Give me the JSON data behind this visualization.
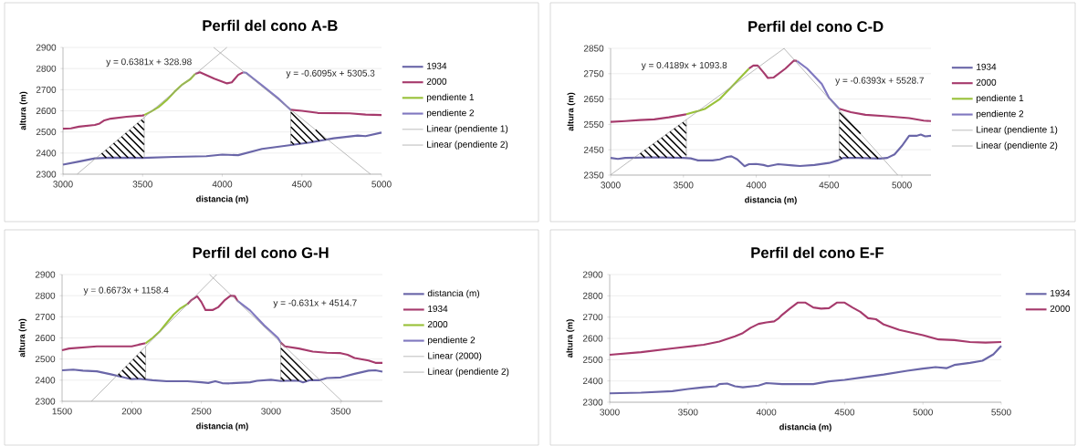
{
  "chart_data": [
    {
      "type": "line",
      "title": "Perfil del cono A-B",
      "xlabel": "distancia (m)",
      "ylabel": "altura (m)",
      "xlim": [
        3000,
        5000
      ],
      "ylim": [
        2300,
        2900
      ],
      "xticks": [
        3000,
        3500,
        4000,
        4500,
        5000
      ],
      "yticks": [
        2300,
        2400,
        2500,
        2600,
        2700,
        2800,
        2900
      ],
      "grid": "y",
      "legend": "right",
      "annotations": [
        "y = 0.6381x + 328.98",
        "y = -0.6095x + 5305.3"
      ],
      "series": [
        {
          "name": "1934",
          "color": "#6a66a8",
          "x": [
            3000,
            3100,
            3200,
            3300,
            3500,
            3700,
            3900,
            4000,
            4100,
            4150,
            4250,
            4400,
            4550,
            4700,
            4850,
            4900,
            5000
          ],
          "values": [
            2345,
            2360,
            2375,
            2378,
            2377,
            2382,
            2385,
            2393,
            2390,
            2400,
            2420,
            2435,
            2450,
            2470,
            2483,
            2480,
            2497
          ]
        },
        {
          "name": "2000",
          "color": "#a63a6c",
          "x": [
            3000,
            3050,
            3100,
            3200,
            3230,
            3260,
            3300,
            3400,
            3500,
            3510,
            3600,
            3830,
            3860,
            3950,
            4030,
            4060,
            4100,
            4130,
            4300,
            4430,
            4500,
            4600,
            4800,
            4900,
            5000
          ],
          "values": [
            2515,
            2517,
            2525,
            2533,
            2540,
            2555,
            2563,
            2572,
            2578,
            2580,
            null,
            2775,
            2782,
            2752,
            2730,
            2735,
            2770,
            2782,
            null,
            2605,
            2600,
            2590,
            2588,
            2582,
            2580
          ]
        },
        {
          "name": "pendiente 1",
          "color": "#99c13a",
          "x": [
            3510,
            3550,
            3600,
            3650,
            3700,
            3750,
            3800,
            3830
          ],
          "values": [
            2580,
            2595,
            2618,
            2650,
            2690,
            2725,
            2750,
            2775
          ]
        },
        {
          "name": "pendiente 2",
          "color": "#8078c0",
          "x": [
            4130,
            4150,
            4200,
            4250,
            4300,
            4350,
            4400,
            4430
          ],
          "values": [
            2782,
            2780,
            2750,
            2720,
            2690,
            2660,
            2625,
            2605
          ]
        },
        {
          "name": "Linear (pendiente 1)",
          "color": "#999999",
          "x": [
            3090,
            4029
          ],
          "values": [
            2301,
            2900
          ]
        },
        {
          "name": "Linear (pendiente 2)",
          "color": "#999999",
          "x": [
            3946,
            4931
          ],
          "values": [
            2900,
            2300
          ]
        }
      ]
    },
    {
      "type": "line",
      "title": "Perfil del cono C-D",
      "xlabel": "distancia (m)",
      "ylabel": "altura (m)",
      "xlim": [
        3000,
        5200
      ],
      "ylim": [
        2350,
        2850
      ],
      "xticks": [
        3000,
        3500,
        4000,
        4500,
        5000
      ],
      "yticks": [
        2350,
        2450,
        2550,
        2650,
        2750,
        2850
      ],
      "grid": "y",
      "legend": "right",
      "annotations": [
        "y = 0.4189x + 1093.8",
        "y = -0.6393x + 5528.7"
      ],
      "series": [
        {
          "name": "1934",
          "color": "#6a66a8",
          "x": [
            3000,
            3050,
            3100,
            3300,
            3500,
            3550,
            3600,
            3700,
            3750,
            3800,
            3830,
            3870,
            3920,
            3950,
            4000,
            4050,
            4080,
            4150,
            4250,
            4300,
            4400,
            4500,
            4560,
            4600,
            4700,
            4850,
            4900,
            4950,
            5000,
            5050,
            5100,
            5130,
            5160,
            5200
          ],
          "values": [
            2418,
            2414,
            2418,
            2420,
            2418,
            2416,
            2408,
            2408,
            2412,
            2422,
            2424,
            2412,
            2385,
            2393,
            2394,
            2390,
            2385,
            2393,
            2388,
            2386,
            2390,
            2398,
            2408,
            2418,
            2418,
            2415,
            2418,
            2432,
            2465,
            2505,
            2505,
            2510,
            2503,
            2505
          ]
        },
        {
          "name": "2000",
          "color": "#a63a6c",
          "x": [
            3000,
            3100,
            3200,
            3300,
            3400,
            3500,
            3520,
            3700,
            3950,
            3980,
            4010,
            4050,
            4080,
            4120,
            4200,
            4260,
            4280,
            4400,
            4570,
            4650,
            4750,
            4900,
            5050,
            5150,
            5200
          ],
          "values": [
            2560,
            2563,
            2567,
            2570,
            2578,
            2588,
            2590,
            null,
            2770,
            2782,
            2782,
            2755,
            2733,
            2735,
            2770,
            2802,
            2800,
            null,
            2612,
            2598,
            2588,
            2582,
            2575,
            2565,
            2563
          ]
        },
        {
          "name": "pendiente 1",
          "color": "#99c13a",
          "x": [
            3520,
            3600,
            3650,
            3750,
            3850,
            3950
          ],
          "values": [
            2590,
            2603,
            2612,
            2650,
            2710,
            2770
          ]
        },
        {
          "name": "pendiente 2",
          "color": "#8078c0",
          "x": [
            4280,
            4350,
            4450,
            4500,
            4570
          ],
          "values": [
            2800,
            2770,
            2710,
            2655,
            2612
          ]
        },
        {
          "name": "Linear (pendiente 1)",
          "color": "#999999",
          "x": [
            3000,
            4192
          ],
          "values": [
            2351,
            2850
          ]
        },
        {
          "name": "Linear (pendiente 2)",
          "color": "#999999",
          "x": [
            4190,
            4972
          ],
          "values": [
            2850,
            2350
          ]
        }
      ]
    },
    {
      "type": "line",
      "title": "Perfil del cono G-H",
      "xlabel": "distancia (m)",
      "ylabel": "altura (m)",
      "xlim": [
        1500,
        3800
      ],
      "ylim": [
        2300,
        2900
      ],
      "xticks": [
        1500,
        2000,
        2500,
        3000,
        3500
      ],
      "yticks": [
        2300,
        2400,
        2500,
        2600,
        2700,
        2800,
        2900
      ],
      "grid": "y",
      "legend": "right",
      "annotations": [
        "y = 0.6673x + 1158.4",
        "y = -0.631x + 4514.7"
      ],
      "series": [
        {
          "name": "distancia (m)",
          "color": "#6a66a8",
          "x": [
            1500,
            1580,
            1650,
            1750,
            1850,
            1950,
            2000,
            2050,
            2150,
            2250,
            2400,
            2500,
            2550,
            2600,
            2650,
            2700,
            2850,
            2900,
            3000,
            3070,
            3150,
            3200,
            3230,
            3280,
            3350,
            3400,
            3500,
            3600,
            3700,
            3750,
            3800
          ],
          "values": [
            2447,
            2450,
            2445,
            2442,
            2428,
            2412,
            2405,
            2407,
            2400,
            2395,
            2395,
            2390,
            2387,
            2395,
            2386,
            2385,
            2390,
            2397,
            2402,
            2396,
            2398,
            2397,
            2390,
            2400,
            2400,
            2410,
            2413,
            2430,
            2445,
            2447,
            2440
          ]
        },
        {
          "name": "1934",
          "color": "#a63a6c",
          "x": [
            1500,
            1550,
            1650,
            1750,
            1900,
            2000,
            2050,
            2100,
            2250,
            2400,
            2430,
            2470,
            2500,
            2530,
            2580,
            2620,
            2670,
            2710,
            2740,
            2760,
            2900,
            3070,
            3100,
            3200,
            3300,
            3400,
            3500,
            3550,
            3600,
            3700,
            3750,
            3800
          ],
          "values": [
            2542,
            2550,
            2555,
            2560,
            2560,
            2560,
            2568,
            2575,
            null,
            2760,
            2780,
            2797,
            2770,
            2732,
            2732,
            2745,
            2780,
            2800,
            2798,
            2775,
            null,
            2578,
            2560,
            2550,
            2535,
            2530,
            2528,
            2520,
            2505,
            2493,
            2482,
            2482
          ]
        },
        {
          "name": "2000",
          "color": "#99c13a",
          "x": [
            2100,
            2150,
            2200,
            2250,
            2300,
            2350,
            2400
          ],
          "values": [
            2575,
            2600,
            2630,
            2670,
            2710,
            2740,
            2760
          ]
        },
        {
          "name": "pendiente 2",
          "color": "#8078c0",
          "x": [
            2760,
            2850,
            2900,
            2950,
            3000,
            3050,
            3070
          ],
          "values": [
            2775,
            2730,
            2695,
            2660,
            2630,
            2600,
            2578
          ]
        },
        {
          "name": "Linear (2000)",
          "color": "#999999",
          "x": [
            1711,
            2610
          ],
          "values": [
            2300,
            2900
          ]
        },
        {
          "name": "Linear (pendiente 2)",
          "color": "#999999",
          "x": [
            2559,
            3510
          ],
          "values": [
            2900,
            2300
          ]
        }
      ]
    },
    {
      "type": "line",
      "title": "Perfil del cono E-F",
      "xlabel": "distancia (m)",
      "ylabel": "altura (m)",
      "xlim": [
        3000,
        5500
      ],
      "ylim": [
        2300,
        2900
      ],
      "xticks": [
        3000,
        3500,
        4000,
        4500,
        5000,
        5500
      ],
      "yticks": [
        2300,
        2400,
        2500,
        2600,
        2700,
        2800,
        2900
      ],
      "grid": "y",
      "legend": "right",
      "series": [
        {
          "name": "1934",
          "color": "#6a66a8",
          "x": [
            3000,
            3200,
            3400,
            3500,
            3600,
            3680,
            3700,
            3750,
            3800,
            3850,
            3950,
            4000,
            4100,
            4200,
            4300,
            4400,
            4500,
            4600,
            4750,
            4900,
            5000,
            5080,
            5150,
            5200,
            5300,
            5380,
            5450,
            5500
          ],
          "values": [
            2342,
            2345,
            2352,
            2362,
            2370,
            2375,
            2385,
            2388,
            2375,
            2370,
            2378,
            2390,
            2385,
            2385,
            2385,
            2398,
            2405,
            2415,
            2430,
            2448,
            2458,
            2465,
            2460,
            2475,
            2485,
            2495,
            2525,
            2565
          ]
        },
        {
          "name": "2000",
          "color": "#a63a6c",
          "x": [
            3000,
            3200,
            3400,
            3600,
            3700,
            3800,
            3850,
            3900,
            3950,
            4000,
            4050,
            4080,
            4100,
            4150,
            4200,
            4250,
            4300,
            4350,
            4400,
            4450,
            4500,
            4550,
            4600,
            4650,
            4700,
            4750,
            4850,
            5000,
            5100,
            5200,
            5300,
            5400,
            5500
          ],
          "values": [
            2523,
            2535,
            2553,
            2570,
            2585,
            2610,
            2625,
            2650,
            2668,
            2675,
            2680,
            2695,
            2710,
            2740,
            2768,
            2768,
            2745,
            2740,
            2742,
            2768,
            2768,
            2745,
            2725,
            2695,
            2690,
            2665,
            2640,
            2615,
            2595,
            2592,
            2583,
            2580,
            2583
          ]
        }
      ]
    }
  ]
}
